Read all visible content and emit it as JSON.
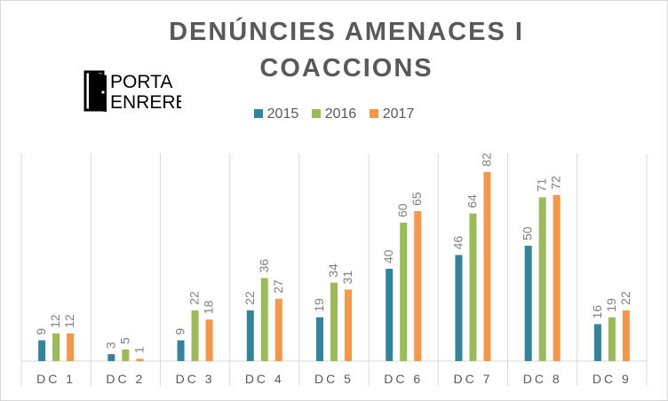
{
  "title_line1": "DENÚNCIES AMENACES I",
  "title_line2": "COACCIONS",
  "logo": {
    "word1": "PORTA",
    "word2": "ENRERE"
  },
  "chart_data": {
    "type": "bar",
    "title": "DENÚNCIES AMENACES I COACCIONS",
    "categories": [
      "DC 1",
      "DC 2",
      "DC 3",
      "DC 4",
      "DC 5",
      "DC 6",
      "DC 7",
      "DC 8",
      "DC 9"
    ],
    "series": [
      {
        "name": "2015",
        "color": "#31849b",
        "values": [
          9,
          3,
          9,
          22,
          19,
          40,
          46,
          50,
          16
        ]
      },
      {
        "name": "2016",
        "color": "#9bbb59",
        "values": [
          12,
          5,
          22,
          36,
          34,
          60,
          64,
          71,
          19
        ]
      },
      {
        "name": "2017",
        "color": "#f79646",
        "values": [
          12,
          1,
          18,
          27,
          31,
          65,
          82,
          72,
          22
        ]
      }
    ],
    "ylim": [
      0,
      90
    ],
    "legend": "top",
    "grid": "vertical separators",
    "data_labels": true
  }
}
